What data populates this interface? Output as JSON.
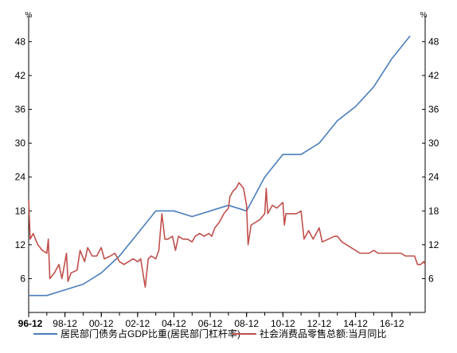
{
  "chart_data": {
    "type": "line",
    "y_unit_left": "%",
    "y_unit_right": "%",
    "ylim": [
      0,
      52
    ],
    "y_ticks": [
      6,
      12,
      18,
      24,
      30,
      36,
      42,
      48
    ],
    "x_ticks": [
      "96-12",
      "98-12",
      "00-12",
      "02-12",
      "04-12",
      "06-12",
      "08-12",
      "10-12",
      "12-12",
      "14-12",
      "16-12"
    ],
    "xlim": [
      "1996-12",
      "2018-10"
    ],
    "legend_position": "bottom",
    "series": [
      {
        "name": "居民部门债务占GDP比重(居民部门杠杆率)",
        "color": "#4a7ebb",
        "points": [
          [
            "1996-12",
            3.0
          ],
          [
            "1997-12",
            3.0
          ],
          [
            "1998-12",
            4.0
          ],
          [
            "1999-12",
            5.0
          ],
          [
            "2000-12",
            7.0
          ],
          [
            "2001-12",
            10.0
          ],
          [
            "2002-12",
            14.0
          ],
          [
            "2003-12",
            18.0
          ],
          [
            "2004-12",
            18.0
          ],
          [
            "2005-12",
            17.0
          ],
          [
            "2006-12",
            18.0
          ],
          [
            "2007-12",
            19.0
          ],
          [
            "2008-12",
            18.0
          ],
          [
            "2009-12",
            24.0
          ],
          [
            "2010-12",
            28.0
          ],
          [
            "2011-12",
            28.0
          ],
          [
            "2012-12",
            30.0
          ],
          [
            "2013-12",
            34.0
          ],
          [
            "2014-12",
            36.5
          ],
          [
            "2015-12",
            40.0
          ],
          [
            "2016-12",
            45.0
          ],
          [
            "2017-12",
            49.0
          ]
        ]
      },
      {
        "name": "社会消费品零售总额:当月同比",
        "color": "#c0504d",
        "points": [
          [
            "1996-12",
            20.0
          ],
          [
            "1997-01",
            13.0
          ],
          [
            "1997-03",
            14.0
          ],
          [
            "1997-06",
            12.0
          ],
          [
            "1997-09",
            11.0
          ],
          [
            "1997-12",
            10.5
          ],
          [
            "1998-01",
            13.0
          ],
          [
            "1998-02",
            6.0
          ],
          [
            "1998-05",
            7.0
          ],
          [
            "1998-08",
            8.5
          ],
          [
            "1998-10",
            6.0
          ],
          [
            "1999-01",
            10.5
          ],
          [
            "1999-02",
            5.5
          ],
          [
            "1999-04",
            7.0
          ],
          [
            "1999-08",
            7.5
          ],
          [
            "1999-10",
            11.0
          ],
          [
            "2000-01",
            9.0
          ],
          [
            "2000-03",
            11.5
          ],
          [
            "2000-06",
            10.0
          ],
          [
            "2000-09",
            10.0
          ],
          [
            "2000-12",
            11.5
          ],
          [
            "2001-02",
            9.5
          ],
          [
            "2001-06",
            10.0
          ],
          [
            "2001-09",
            10.5
          ],
          [
            "2001-12",
            9.0
          ],
          [
            "2002-03",
            8.5
          ],
          [
            "2002-06",
            9.0
          ],
          [
            "2002-09",
            9.5
          ],
          [
            "2002-12",
            9.0
          ],
          [
            "2003-02",
            9.5
          ],
          [
            "2003-05",
            4.5
          ],
          [
            "2003-07",
            9.5
          ],
          [
            "2003-09",
            10.0
          ],
          [
            "2003-12",
            9.5
          ],
          [
            "2004-02",
            11.0
          ],
          [
            "2004-04",
            17.5
          ],
          [
            "2004-06",
            13.0
          ],
          [
            "2004-08",
            13.0
          ],
          [
            "2004-11",
            13.5
          ],
          [
            "2005-01",
            11.0
          ],
          [
            "2005-03",
            13.5
          ],
          [
            "2005-06",
            13.0
          ],
          [
            "2005-09",
            13.0
          ],
          [
            "2005-12",
            12.5
          ],
          [
            "2006-02",
            13.5
          ],
          [
            "2006-05",
            14.0
          ],
          [
            "2006-08",
            13.5
          ],
          [
            "2006-11",
            14.0
          ],
          [
            "2007-01",
            13.5
          ],
          [
            "2007-03",
            15.0
          ],
          [
            "2007-06",
            16.0
          ],
          [
            "2007-09",
            17.5
          ],
          [
            "2007-12",
            18.5
          ],
          [
            "2008-01",
            20.5
          ],
          [
            "2008-03",
            21.5
          ],
          [
            "2008-05",
            22.0
          ],
          [
            "2008-07",
            23.0
          ],
          [
            "2008-10",
            22.0
          ],
          [
            "2008-12",
            19.0
          ],
          [
            "2009-01",
            12.0
          ],
          [
            "2009-03",
            15.5
          ],
          [
            "2009-06",
            16.0
          ],
          [
            "2009-09",
            16.5
          ],
          [
            "2009-12",
            17.5
          ],
          [
            "2010-01",
            22.0
          ],
          [
            "2010-02",
            17.5
          ],
          [
            "2010-05",
            19.0
          ],
          [
            "2010-08",
            18.5
          ],
          [
            "2010-12",
            19.5
          ],
          [
            "2011-01",
            15.5
          ],
          [
            "2011-02",
            17.5
          ],
          [
            "2011-06",
            17.5
          ],
          [
            "2011-09",
            17.5
          ],
          [
            "2011-12",
            18.0
          ],
          [
            "2012-02",
            13.0
          ],
          [
            "2012-05",
            14.5
          ],
          [
            "2012-08",
            13.0
          ],
          [
            "2012-12",
            15.0
          ],
          [
            "2013-02",
            12.5
          ],
          [
            "2013-06",
            13.0
          ],
          [
            "2013-10",
            13.5
          ],
          [
            "2013-12",
            13.5
          ],
          [
            "2014-03",
            12.5
          ],
          [
            "2014-06",
            12.0
          ],
          [
            "2014-09",
            11.5
          ],
          [
            "2014-12",
            11.0
          ],
          [
            "2015-03",
            10.5
          ],
          [
            "2015-06",
            10.5
          ],
          [
            "2015-09",
            10.5
          ],
          [
            "2015-12",
            11.0
          ],
          [
            "2016-03",
            10.5
          ],
          [
            "2016-06",
            10.5
          ],
          [
            "2016-09",
            10.5
          ],
          [
            "2016-12",
            10.5
          ],
          [
            "2017-03",
            10.5
          ],
          [
            "2017-06",
            10.5
          ],
          [
            "2017-09",
            10.0
          ],
          [
            "2017-12",
            10.0
          ],
          [
            "2018-03",
            10.0
          ],
          [
            "2018-05",
            8.5
          ],
          [
            "2018-07",
            8.5
          ],
          [
            "2018-09",
            9.0
          ],
          [
            "2018-10",
            8.5
          ]
        ]
      }
    ]
  }
}
